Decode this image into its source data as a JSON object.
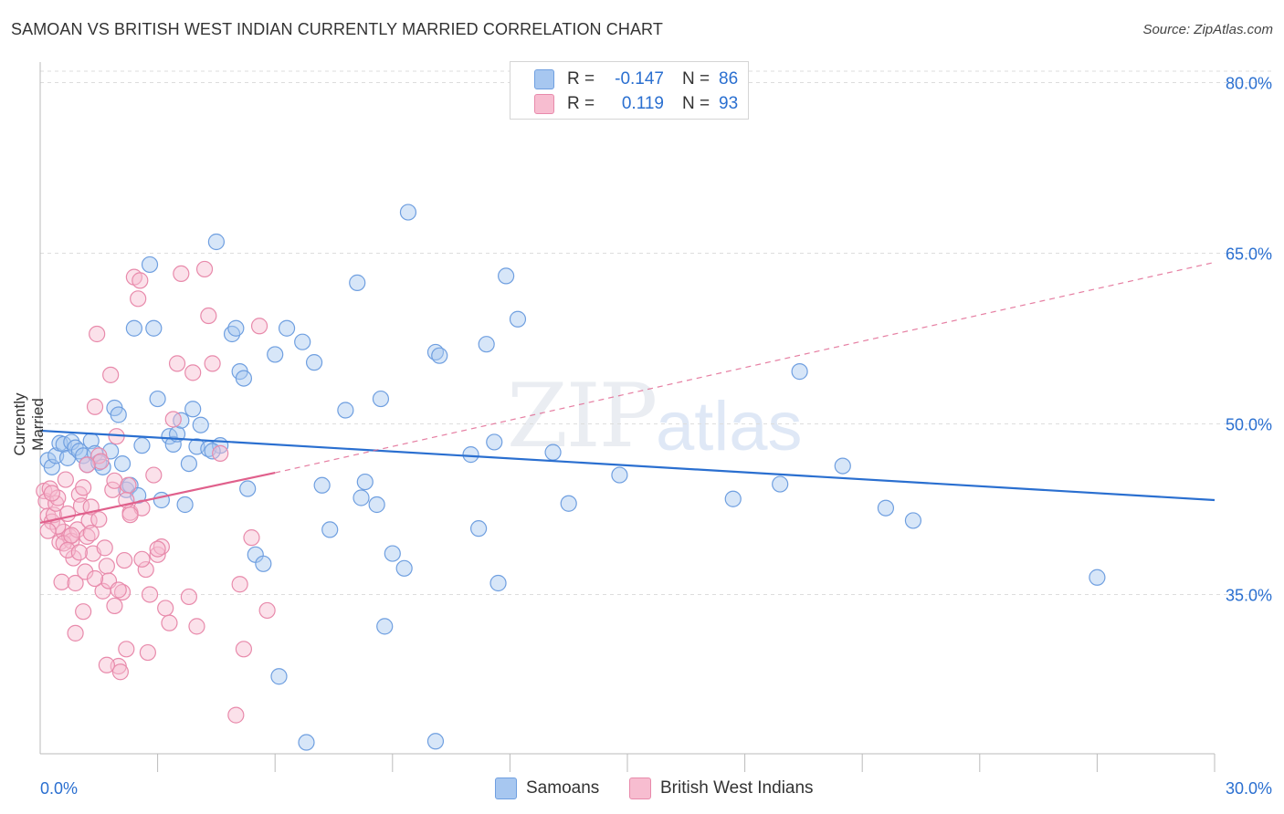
{
  "title": "SAMOAN VS BRITISH WEST INDIAN CURRENTLY MARRIED CORRELATION CHART",
  "source": "Source: ZipAtlas.com",
  "watermark": {
    "part1": "ZIP",
    "part2": "atlas"
  },
  "legend": {
    "rows": [
      {
        "r_label": "R =",
        "r_value": "-0.147",
        "n_label": "N =",
        "n_value": "86"
      },
      {
        "r_label": "R =",
        "r_value": "0.119",
        "n_label": "N =",
        "n_value": "93"
      }
    ]
  },
  "bottom_legend": [
    "Samoans",
    "British West Indians"
  ],
  "colors": {
    "blue_fill": "#a7c7f0",
    "blue_stroke": "#6f9fe0",
    "blue_line": "#2a6fd0",
    "pink_fill": "#f7bdd0",
    "pink_stroke": "#e88aab",
    "pink_line": "#e0608c",
    "grid": "#dddddd",
    "axis_text": "#2a6fd0"
  },
  "chart_data": {
    "type": "scatter",
    "title": "SAMOAN VS BRITISH WEST INDIAN CURRENTLY MARRIED CORRELATION CHART",
    "xlabel": "",
    "ylabel": "Currently Married",
    "xlim": [
      0,
      30
    ],
    "ylim": [
      21,
      81
    ],
    "x_tick_labels": [
      "0.0%",
      "30.0%"
    ],
    "y_ticks": [
      35,
      50,
      65,
      80
    ],
    "y_tick_labels": [
      "35.0%",
      "50.0%",
      "65.0%",
      "80.0%"
    ],
    "grid": true,
    "legend_position": "top-center",
    "series": [
      {
        "name": "Samoans",
        "R": -0.147,
        "N": 86,
        "trend": {
          "x": [
            0,
            30
          ],
          "y": [
            49.4,
            43.3
          ],
          "style": "solid"
        },
        "points": [
          [
            0.2,
            46.8
          ],
          [
            0.3,
            46.2
          ],
          [
            0.4,
            47.2
          ],
          [
            0.5,
            48.3
          ],
          [
            0.6,
            48.2
          ],
          [
            0.7,
            47.0
          ],
          [
            0.8,
            48.4
          ],
          [
            0.9,
            47.9
          ],
          [
            1.0,
            47.6
          ],
          [
            1.1,
            47.2
          ],
          [
            1.2,
            46.4
          ],
          [
            1.3,
            48.5
          ],
          [
            1.4,
            47.4
          ],
          [
            1.5,
            46.6
          ],
          [
            1.8,
            47.6
          ],
          [
            1.9,
            51.4
          ],
          [
            2.0,
            50.8
          ],
          [
            2.1,
            46.5
          ],
          [
            2.2,
            44.2
          ],
          [
            2.3,
            44.6
          ],
          [
            2.4,
            58.4
          ],
          [
            2.5,
            43.7
          ],
          [
            2.6,
            48.1
          ],
          [
            2.8,
            64.0
          ],
          [
            2.9,
            58.4
          ],
          [
            3.0,
            52.2
          ],
          [
            3.1,
            43.3
          ],
          [
            3.3,
            48.9
          ],
          [
            3.4,
            48.2
          ],
          [
            3.5,
            49.1
          ],
          [
            3.6,
            50.3
          ],
          [
            3.7,
            42.9
          ],
          [
            3.8,
            46.5
          ],
          [
            3.9,
            51.3
          ],
          [
            4.0,
            48.0
          ],
          [
            4.1,
            49.9
          ],
          [
            4.3,
            47.8
          ],
          [
            4.5,
            66.0
          ],
          [
            4.6,
            48.1
          ],
          [
            4.9,
            57.9
          ],
          [
            5.0,
            58.4
          ],
          [
            5.1,
            54.6
          ],
          [
            5.2,
            54.0
          ],
          [
            5.3,
            44.3
          ],
          [
            5.5,
            38.5
          ],
          [
            5.7,
            37.7
          ],
          [
            6.0,
            56.1
          ],
          [
            6.1,
            27.8
          ],
          [
            6.3,
            58.4
          ],
          [
            6.7,
            57.2
          ],
          [
            6.8,
            22.0
          ],
          [
            7.0,
            55.4
          ],
          [
            7.2,
            44.6
          ],
          [
            7.4,
            40.7
          ],
          [
            7.8,
            51.2
          ],
          [
            8.1,
            62.4
          ],
          [
            8.2,
            43.5
          ],
          [
            8.3,
            44.9
          ],
          [
            8.6,
            42.9
          ],
          [
            8.7,
            52.2
          ],
          [
            9.4,
            68.6
          ],
          [
            8.8,
            32.2
          ],
          [
            9.0,
            38.6
          ],
          [
            9.3,
            37.3
          ],
          [
            10.1,
            56.3
          ],
          [
            10.1,
            22.1
          ],
          [
            10.2,
            56.0
          ],
          [
            11.0,
            47.3
          ],
          [
            11.2,
            40.8
          ],
          [
            11.4,
            57.0
          ],
          [
            11.6,
            48.4
          ],
          [
            11.7,
            36.0
          ],
          [
            11.9,
            63.0
          ],
          [
            12.2,
            59.2
          ],
          [
            13.1,
            47.5
          ],
          [
            13.5,
            43.0
          ],
          [
            14.8,
            45.5
          ],
          [
            17.7,
            43.4
          ],
          [
            18.9,
            44.7
          ],
          [
            19.4,
            54.6
          ],
          [
            20.5,
            46.3
          ],
          [
            21.6,
            42.6
          ],
          [
            22.3,
            41.5
          ],
          [
            27.0,
            36.5
          ],
          [
            1.6,
            46.2
          ],
          [
            4.4,
            47.6
          ]
        ]
      },
      {
        "name": "British West Indians",
        "R": 0.119,
        "N": 93,
        "trend": {
          "x": [
            0,
            6.0
          ],
          "y": [
            41.3,
            45.7
          ],
          "style": "solid",
          "extended_x": [
            6.0,
            30
          ],
          "extended_y": [
            45.7,
            64.2
          ],
          "extended_style": "dashed"
        },
        "points": [
          [
            0.1,
            44.1
          ],
          [
            0.15,
            43.2
          ],
          [
            0.2,
            41.9
          ],
          [
            0.25,
            44.3
          ],
          [
            0.3,
            41.4
          ],
          [
            0.35,
            42.0
          ],
          [
            0.4,
            43.0
          ],
          [
            0.45,
            43.5
          ],
          [
            0.5,
            39.6
          ],
          [
            0.55,
            36.1
          ],
          [
            0.6,
            40.5
          ],
          [
            0.65,
            45.1
          ],
          [
            0.7,
            42.1
          ],
          [
            0.75,
            40.1
          ],
          [
            0.8,
            39.7
          ],
          [
            0.85,
            38.2
          ],
          [
            0.9,
            36.0
          ],
          [
            0.95,
            40.7
          ],
          [
            1.0,
            43.8
          ],
          [
            1.05,
            42.8
          ],
          [
            1.1,
            33.5
          ],
          [
            1.15,
            37.0
          ],
          [
            1.2,
            40.1
          ],
          [
            1.25,
            41.5
          ],
          [
            1.3,
            42.7
          ],
          [
            1.35,
            38.6
          ],
          [
            1.4,
            51.5
          ],
          [
            1.45,
            57.9
          ],
          [
            1.5,
            47.2
          ],
          [
            1.55,
            46.7
          ],
          [
            1.6,
            35.3
          ],
          [
            1.65,
            39.1
          ],
          [
            1.7,
            37.5
          ],
          [
            1.75,
            36.2
          ],
          [
            1.8,
            54.3
          ],
          [
            1.85,
            44.2
          ],
          [
            1.9,
            45.0
          ],
          [
            1.95,
            48.9
          ],
          [
            2.0,
            28.7
          ],
          [
            2.05,
            28.2
          ],
          [
            2.1,
            35.2
          ],
          [
            2.15,
            38.0
          ],
          [
            2.2,
            30.2
          ],
          [
            2.25,
            44.6
          ],
          [
            2.3,
            42.2
          ],
          [
            2.4,
            62.9
          ],
          [
            2.5,
            61.0
          ],
          [
            2.55,
            62.6
          ],
          [
            2.6,
            42.6
          ],
          [
            2.7,
            37.2
          ],
          [
            2.75,
            29.9
          ],
          [
            2.8,
            35.0
          ],
          [
            2.9,
            45.5
          ],
          [
            3.0,
            38.5
          ],
          [
            3.1,
            39.2
          ],
          [
            3.2,
            33.8
          ],
          [
            3.3,
            32.5
          ],
          [
            3.4,
            50.4
          ],
          [
            3.5,
            55.3
          ],
          [
            3.6,
            63.2
          ],
          [
            3.8,
            34.8
          ],
          [
            3.9,
            54.5
          ],
          [
            4.0,
            32.2
          ],
          [
            4.2,
            63.6
          ],
          [
            4.3,
            59.5
          ],
          [
            4.4,
            55.3
          ],
          [
            4.6,
            47.4
          ],
          [
            5.0,
            24.4
          ],
          [
            5.1,
            35.9
          ],
          [
            5.2,
            30.2
          ],
          [
            5.4,
            40.0
          ],
          [
            5.6,
            58.6
          ],
          [
            5.8,
            33.6
          ],
          [
            1.2,
            46.4
          ],
          [
            0.9,
            31.6
          ],
          [
            1.7,
            28.8
          ],
          [
            2.0,
            35.4
          ],
          [
            1.1,
            44.4
          ],
          [
            0.6,
            39.5
          ],
          [
            0.3,
            43.9
          ],
          [
            0.45,
            41.0
          ],
          [
            0.8,
            40.2
          ],
          [
            1.3,
            40.4
          ],
          [
            2.2,
            43.3
          ],
          [
            2.6,
            38.1
          ],
          [
            3.0,
            39.0
          ],
          [
            1.9,
            34.0
          ],
          [
            1.5,
            41.6
          ],
          [
            0.2,
            40.6
          ],
          [
            0.7,
            38.9
          ],
          [
            1.0,
            38.7
          ],
          [
            1.4,
            36.4
          ],
          [
            2.3,
            42.0
          ]
        ]
      }
    ]
  }
}
